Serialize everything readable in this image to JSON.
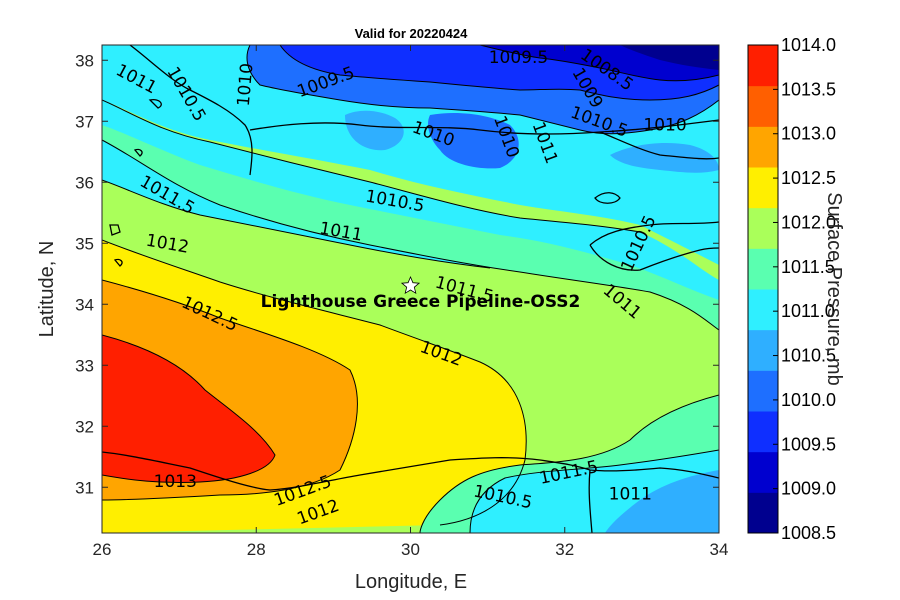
{
  "chart_data": {
    "type": "heatmap",
    "title": "Valid for 20220424",
    "xlabel": "Longitude, E",
    "ylabel": "Latitude, N",
    "xlim": [
      26,
      34
    ],
    "ylim": [
      30.25,
      38.25
    ],
    "xticks": [
      "26",
      "28",
      "30",
      "32",
      "34"
    ],
    "yticks": [
      "31",
      "32",
      "33",
      "34",
      "35",
      "36",
      "37",
      "38"
    ],
    "colorbar": {
      "label": "Surface Pressure, mb",
      "range": [
        1008.5,
        1014.0
      ],
      "ticks": [
        "1008.5",
        "1009.0",
        "1009.5",
        "1010.0",
        "1010.5",
        "1011.0",
        "1011.5",
        "1012.0",
        "1012.5",
        "1013.0",
        "1013.5",
        "1014.0"
      ],
      "colors": [
        "#00008f",
        "#0000cf",
        "#0f2fff",
        "#1e6fff",
        "#2fafff",
        "#2fefff",
        "#5affb0",
        "#aaff5a",
        "#ffef00",
        "#ffa500",
        "#ff5f00",
        "#ff1f00"
      ]
    },
    "contour_labels": [
      {
        "text": "1011",
        "lon": 26.45,
        "lat": 37.7,
        "angle": 28
      },
      {
        "text": "1010.5",
        "lon": 27.1,
        "lat": 37.45,
        "angle": 60
      },
      {
        "text": "1010",
        "lon": 27.85,
        "lat": 37.6,
        "angle": -85
      },
      {
        "text": "1009.5",
        "lon": 28.9,
        "lat": 37.65,
        "angle": -20
      },
      {
        "text": "1009.5",
        "lon": 31.4,
        "lat": 38.05,
        "angle": 0
      },
      {
        "text": "1008.5",
        "lon": 32.55,
        "lat": 37.85,
        "angle": 35
      },
      {
        "text": "1009",
        "lon": 32.3,
        "lat": 37.55,
        "angle": 60
      },
      {
        "text": "1010.5",
        "lon": 32.45,
        "lat": 37.0,
        "angle": 20
      },
      {
        "text": "1010",
        "lon": 33.3,
        "lat": 36.95,
        "angle": 0
      },
      {
        "text": "1010",
        "lon": 30.3,
        "lat": 36.8,
        "angle": 20
      },
      {
        "text": "1010",
        "lon": 31.25,
        "lat": 36.75,
        "angle": 70
      },
      {
        "text": "1011",
        "lon": 31.75,
        "lat": 36.65,
        "angle": 70
      },
      {
        "text": "1011.5",
        "lon": 26.85,
        "lat": 35.8,
        "angle": 30
      },
      {
        "text": "1010.5",
        "lon": 29.8,
        "lat": 35.7,
        "angle": 10
      },
      {
        "text": "1011",
        "lon": 29.1,
        "lat": 35.2,
        "angle": 10
      },
      {
        "text": "1012",
        "lon": 26.85,
        "lat": 35.0,
        "angle": 10
      },
      {
        "text": "1011.5",
        "lon": 30.7,
        "lat": 34.25,
        "angle": 15
      },
      {
        "text": "1011",
        "lon": 32.75,
        "lat": 34.05,
        "angle": 40
      },
      {
        "text": "1010.5",
        "lon": 32.95,
        "lat": 35.0,
        "angle": -65
      },
      {
        "text": "1012.5",
        "lon": 27.4,
        "lat": 33.85,
        "angle": 25
      },
      {
        "text": "1012",
        "lon": 30.4,
        "lat": 33.2,
        "angle": 20
      },
      {
        "text": "1013",
        "lon": 26.95,
        "lat": 31.1,
        "angle": 0
      },
      {
        "text": "1012.5",
        "lon": 28.6,
        "lat": 30.95,
        "angle": -20
      },
      {
        "text": "1012",
        "lon": 28.8,
        "lat": 30.6,
        "angle": -20
      },
      {
        "text": "1010.5",
        "lon": 31.2,
        "lat": 30.85,
        "angle": 12
      },
      {
        "text": "1011.5",
        "lon": 32.05,
        "lat": 31.25,
        "angle": -12
      },
      {
        "text": "1011",
        "lon": 32.85,
        "lat": 30.9,
        "angle": 0
      }
    ],
    "site": {
      "name": "Lighthouse Greece Pipeline-OSS2",
      "lon": 30.0,
      "lat": 34.3
    }
  }
}
